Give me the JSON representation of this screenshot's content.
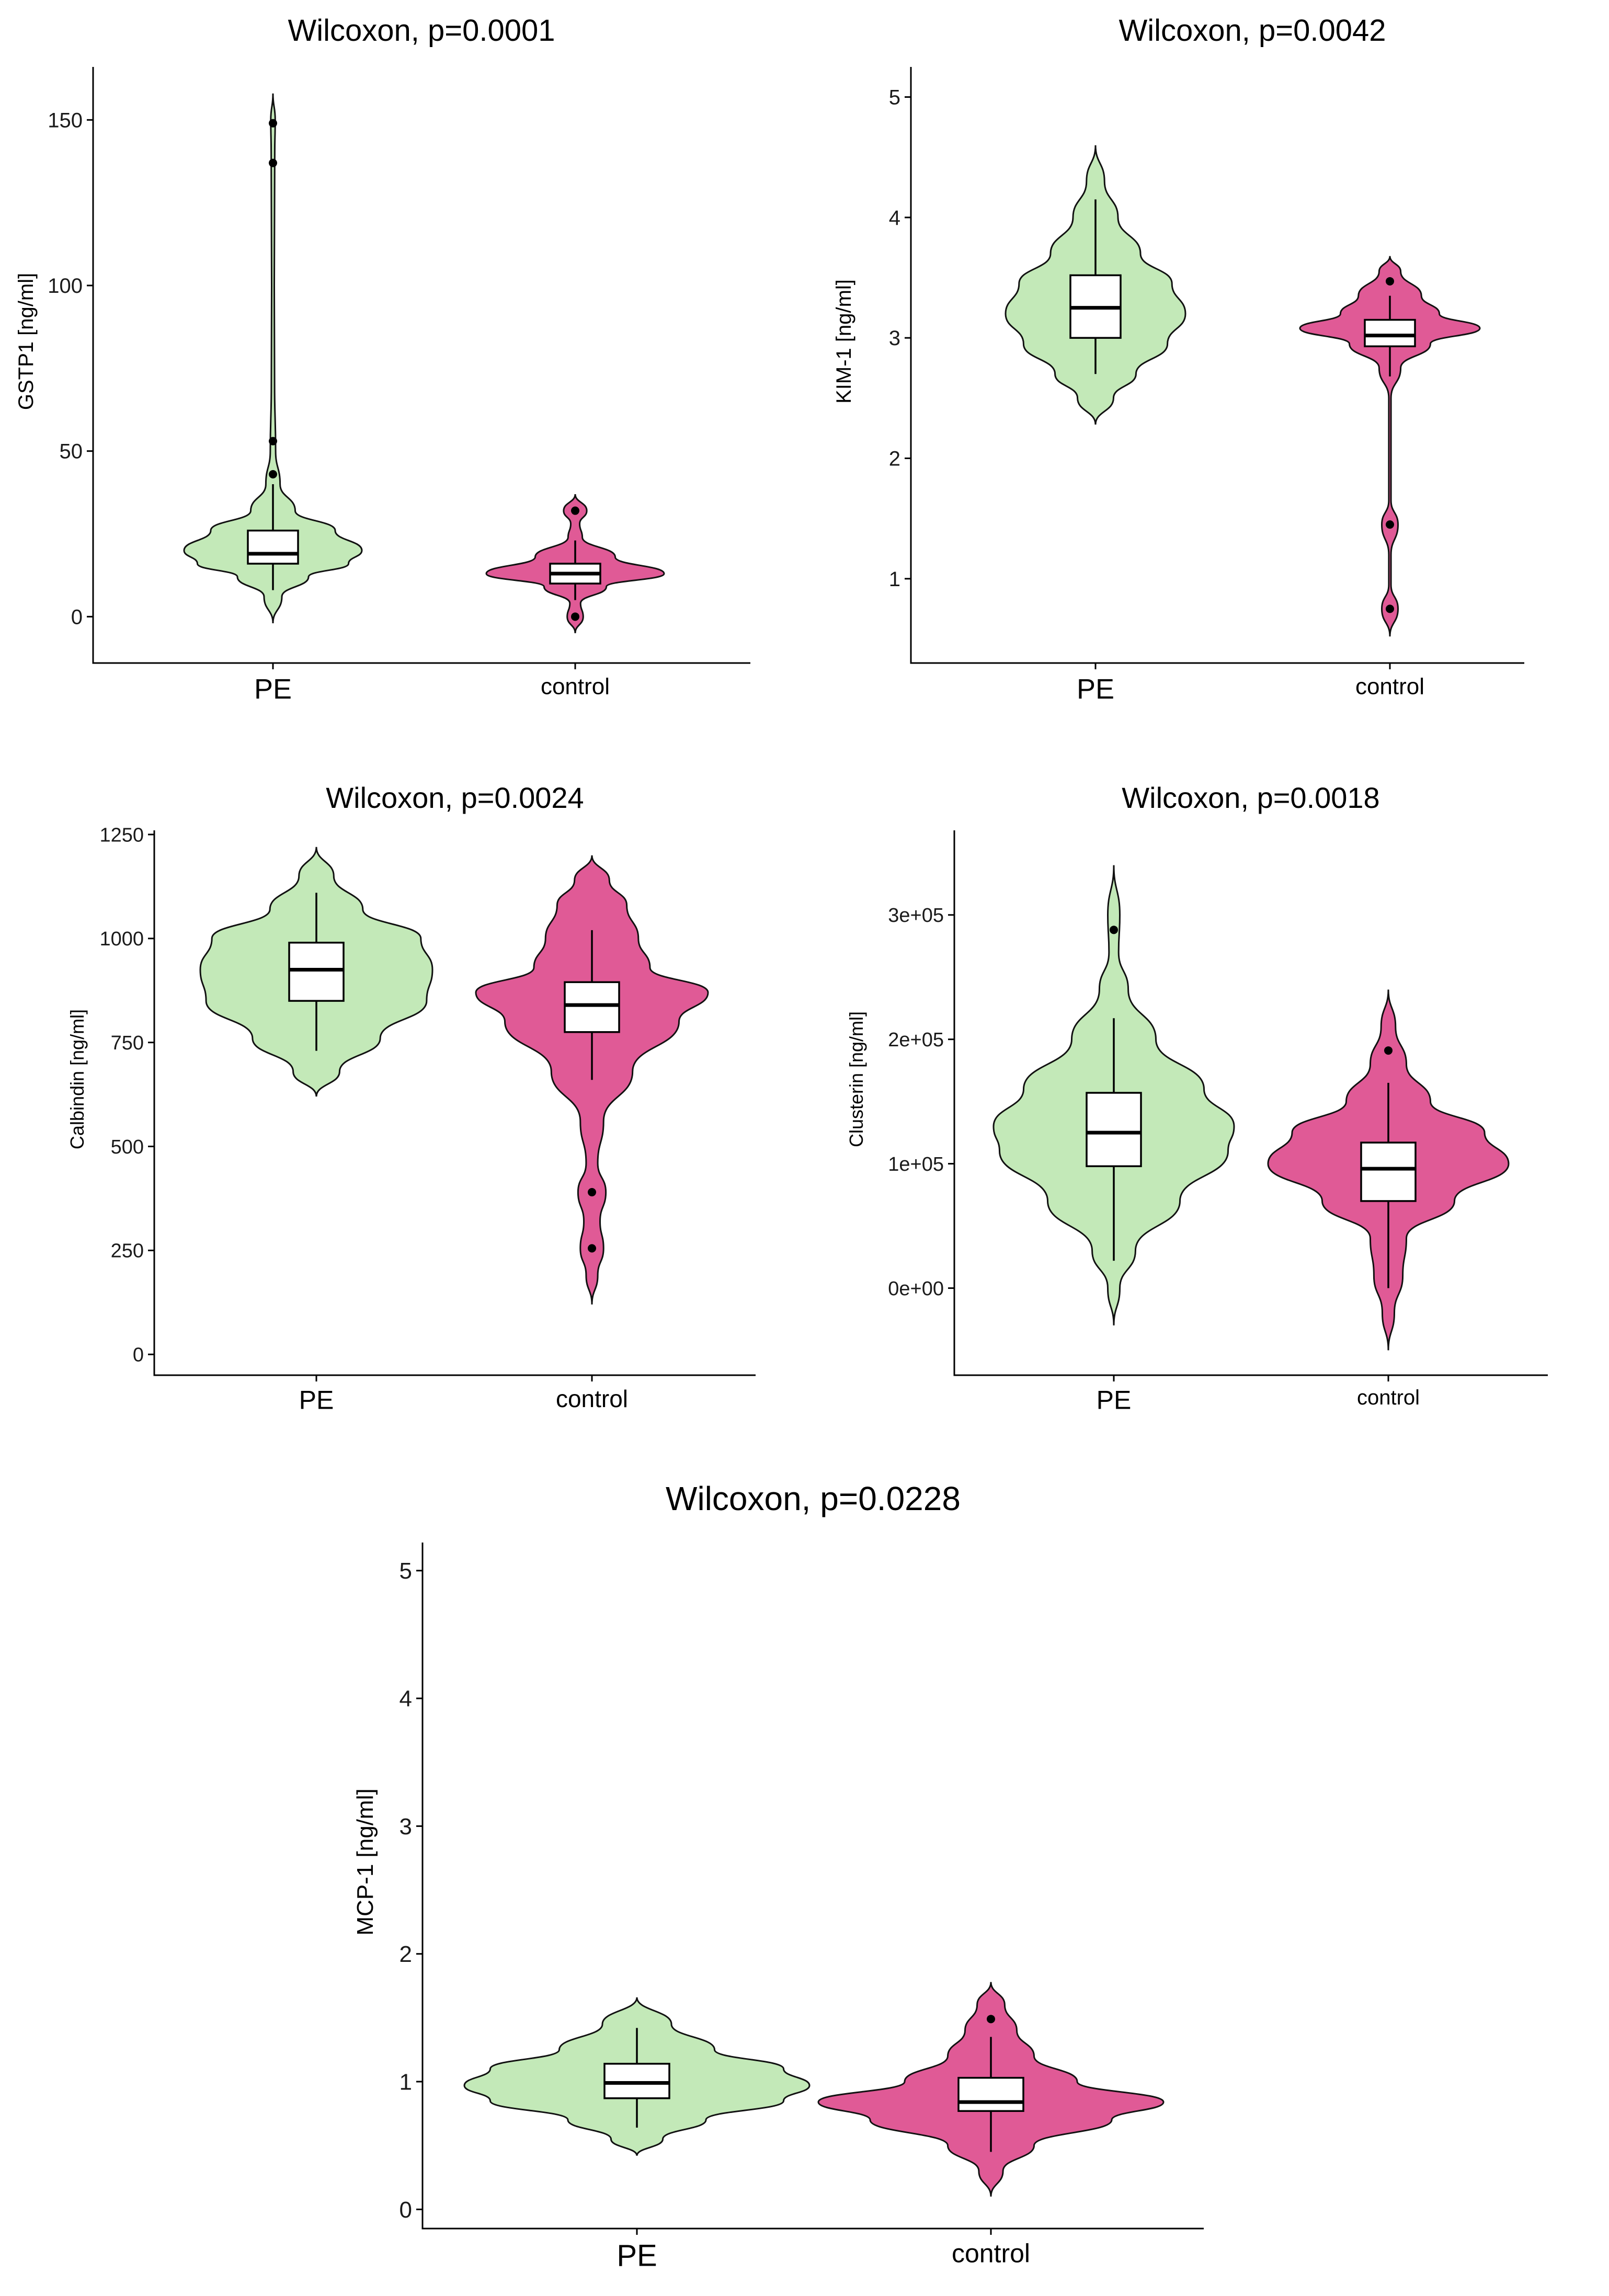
{
  "colors": {
    "PE": "#c3e9b8",
    "control": "#e05a96"
  },
  "chart_data": [
    {
      "type": "violin",
      "title": "Wilcoxon, p=0.0001",
      "ylabel": "GSTP1  [ng/ml]",
      "categories": [
        "PE",
        "control"
      ],
      "yticks": [
        0,
        50,
        100,
        150
      ],
      "tick_labels": [
        "0",
        "50",
        "100",
        "150"
      ],
      "ylim": [
        -14,
        166
      ],
      "groups": [
        {
          "name": "PE",
          "median": 19,
          "q1": 16,
          "q3": 26,
          "whisker_low": 8,
          "whisker_high": 40,
          "outliers": [
            43,
            53,
            137,
            149
          ],
          "density": [
            [
              -2,
              0
            ],
            [
              6,
              0.1
            ],
            [
              12,
              0.4
            ],
            [
              16,
              0.85
            ],
            [
              20,
              1.0
            ],
            [
              26,
              0.7
            ],
            [
              32,
              0.25
            ],
            [
              40,
              0.08
            ],
            [
              50,
              0.03
            ],
            [
              70,
              0.018
            ],
            [
              100,
              0.015
            ],
            [
              140,
              0.02
            ],
            [
              150,
              0.025
            ],
            [
              158,
              0
            ]
          ]
        },
        {
          "name": "control",
          "median": 13,
          "q1": 10,
          "q3": 16,
          "whisker_low": 5,
          "whisker_high": 23,
          "outliers": [
            0,
            32
          ],
          "density": [
            [
              -5,
              0
            ],
            [
              0,
              0.09
            ],
            [
              4,
              0.06
            ],
            [
              9,
              0.35
            ],
            [
              13,
              1.0
            ],
            [
              18,
              0.45
            ],
            [
              24,
              0.08
            ],
            [
              28,
              0.05
            ],
            [
              32,
              0.13
            ],
            [
              37,
              0
            ]
          ]
        }
      ]
    },
    {
      "type": "violin",
      "title": "Wilcoxon, p=0.0042",
      "ylabel": "KIM-1  [ng/ml]",
      "categories": [
        "PE",
        "control"
      ],
      "yticks": [
        1,
        2,
        3,
        4,
        5
      ],
      "tick_labels": [
        "1",
        "2",
        "3",
        "4",
        "5"
      ],
      "ylim": [
        0.3,
        5.25
      ],
      "groups": [
        {
          "name": "PE",
          "median": 3.25,
          "q1": 3.0,
          "q3": 3.52,
          "whisker_low": 2.7,
          "whisker_high": 4.15,
          "outliers": [],
          "density": [
            [
              2.28,
              0
            ],
            [
              2.5,
              0.2
            ],
            [
              2.7,
              0.45
            ],
            [
              2.95,
              0.8
            ],
            [
              3.2,
              1.0
            ],
            [
              3.45,
              0.85
            ],
            [
              3.7,
              0.5
            ],
            [
              4.0,
              0.25
            ],
            [
              4.3,
              0.1
            ],
            [
              4.6,
              0
            ]
          ]
        },
        {
          "name": "control",
          "median": 3.02,
          "q1": 2.93,
          "q3": 3.15,
          "whisker_low": 2.68,
          "whisker_high": 3.35,
          "outliers": [
            0.75,
            1.45,
            3.47
          ],
          "density": [
            [
              0.52,
              0
            ],
            [
              0.75,
              0.09
            ],
            [
              0.95,
              0.012
            ],
            [
              1.2,
              0.012
            ],
            [
              1.45,
              0.09
            ],
            [
              1.65,
              0.012
            ],
            [
              2.5,
              0.012
            ],
            [
              2.75,
              0.12
            ],
            [
              2.95,
              0.45
            ],
            [
              3.08,
              1.0
            ],
            [
              3.2,
              0.55
            ],
            [
              3.35,
              0.35
            ],
            [
              3.55,
              0.12
            ],
            [
              3.68,
              0
            ]
          ]
        }
      ]
    },
    {
      "type": "violin",
      "title": "Wilcoxon, p=0.0024",
      "ylabel": "Calbindin  [ng/ml]",
      "categories": [
        "PE",
        "control"
      ],
      "yticks": [
        0,
        250,
        500,
        750,
        1000,
        1250
      ],
      "tick_labels": [
        "0",
        "250",
        "500",
        "750",
        "1000",
        "1250"
      ],
      "ylim": [
        -50,
        1260
      ],
      "groups": [
        {
          "name": "PE",
          "median": 925,
          "q1": 850,
          "q3": 990,
          "whisker_low": 730,
          "whisker_high": 1110,
          "outliers": [],
          "density": [
            [
              620,
              0
            ],
            [
              680,
              0.2
            ],
            [
              760,
              0.55
            ],
            [
              850,
              0.95
            ],
            [
              925,
              1.0
            ],
            [
              1000,
              0.9
            ],
            [
              1070,
              0.4
            ],
            [
              1150,
              0.15
            ],
            [
              1220,
              0
            ]
          ]
        },
        {
          "name": "control",
          "median": 840,
          "q1": 775,
          "q3": 895,
          "whisker_low": 660,
          "whisker_high": 1020,
          "outliers": [
            255,
            390
          ],
          "density": [
            [
              120,
              0
            ],
            [
              190,
              0.05
            ],
            [
              255,
              0.1
            ],
            [
              320,
              0.07
            ],
            [
              390,
              0.12
            ],
            [
              460,
              0.05
            ],
            [
              560,
              0.1
            ],
            [
              680,
              0.35
            ],
            [
              800,
              0.75
            ],
            [
              870,
              1.0
            ],
            [
              930,
              0.5
            ],
            [
              1000,
              0.4
            ],
            [
              1080,
              0.3
            ],
            [
              1140,
              0.15
            ],
            [
              1200,
              0
            ]
          ]
        }
      ]
    },
    {
      "type": "violin",
      "title": "Wilcoxon, p=0.0018",
      "ylabel": "Clusterin  [ng/ml]",
      "categories": [
        "PE",
        "control"
      ],
      "yticks": [
        0,
        100000,
        200000,
        300000
      ],
      "tick_labels": [
        "0e+00",
        "1e+05",
        "2e+05",
        "3e+05"
      ],
      "ylim": [
        -70000,
        368000
      ],
      "groups": [
        {
          "name": "PE",
          "median": 125000,
          "q1": 98000,
          "q3": 157000,
          "whisker_low": 22000,
          "whisker_high": 217000,
          "outliers": [
            288000
          ],
          "density": [
            [
              -30000,
              0
            ],
            [
              0,
              0.05
            ],
            [
              30000,
              0.18
            ],
            [
              70000,
              0.55
            ],
            [
              110000,
              0.95
            ],
            [
              130000,
              1.0
            ],
            [
              160000,
              0.75
            ],
            [
              200000,
              0.35
            ],
            [
              240000,
              0.12
            ],
            [
              270000,
              0.04
            ],
            [
              300000,
              0.05
            ],
            [
              340000,
              0
            ]
          ]
        },
        {
          "name": "control",
          "median": 96000,
          "q1": 70000,
          "q3": 117000,
          "whisker_low": 0,
          "whisker_high": 165000,
          "outliers": [
            191000
          ],
          "density": [
            [
              -50000,
              0
            ],
            [
              -20000,
              0.05
            ],
            [
              10000,
              0.12
            ],
            [
              40000,
              0.15
            ],
            [
              70000,
              0.55
            ],
            [
              100000,
              1.0
            ],
            [
              125000,
              0.8
            ],
            [
              150000,
              0.35
            ],
            [
              180000,
              0.15
            ],
            [
              210000,
              0.06
            ],
            [
              240000,
              0
            ]
          ]
        }
      ]
    },
    {
      "type": "violin",
      "title": "Wilcoxon, p=0.0228",
      "ylabel": "MCP-1  [ng/ml]",
      "categories": [
        "PE",
        "control"
      ],
      "yticks": [
        0,
        1,
        2,
        3,
        4,
        5
      ],
      "tick_labels": [
        "0",
        "1",
        "2",
        "3",
        "4",
        "5"
      ],
      "ylim": [
        -0.15,
        5.22
      ],
      "groups": [
        {
          "name": "PE",
          "median": 0.99,
          "q1": 0.87,
          "q3": 1.14,
          "whisker_low": 0.64,
          "whisker_high": 1.42,
          "outliers": [],
          "density": [
            [
              0.42,
              0
            ],
            [
              0.55,
              0.15
            ],
            [
              0.7,
              0.4
            ],
            [
              0.85,
              0.85
            ],
            [
              0.97,
              1.0
            ],
            [
              1.1,
              0.85
            ],
            [
              1.25,
              0.45
            ],
            [
              1.45,
              0.2
            ],
            [
              1.66,
              0
            ]
          ]
        },
        {
          "name": "control",
          "median": 0.84,
          "q1": 0.77,
          "q3": 1.03,
          "whisker_low": 0.45,
          "whisker_high": 1.35,
          "outliers": [
            1.49
          ],
          "density": [
            [
              0.1,
              0
            ],
            [
              0.3,
              0.07
            ],
            [
              0.5,
              0.25
            ],
            [
              0.7,
              0.7
            ],
            [
              0.84,
              1.0
            ],
            [
              1.0,
              0.5
            ],
            [
              1.2,
              0.25
            ],
            [
              1.4,
              0.15
            ],
            [
              1.6,
              0.08
            ],
            [
              1.78,
              0
            ]
          ]
        }
      ]
    }
  ]
}
